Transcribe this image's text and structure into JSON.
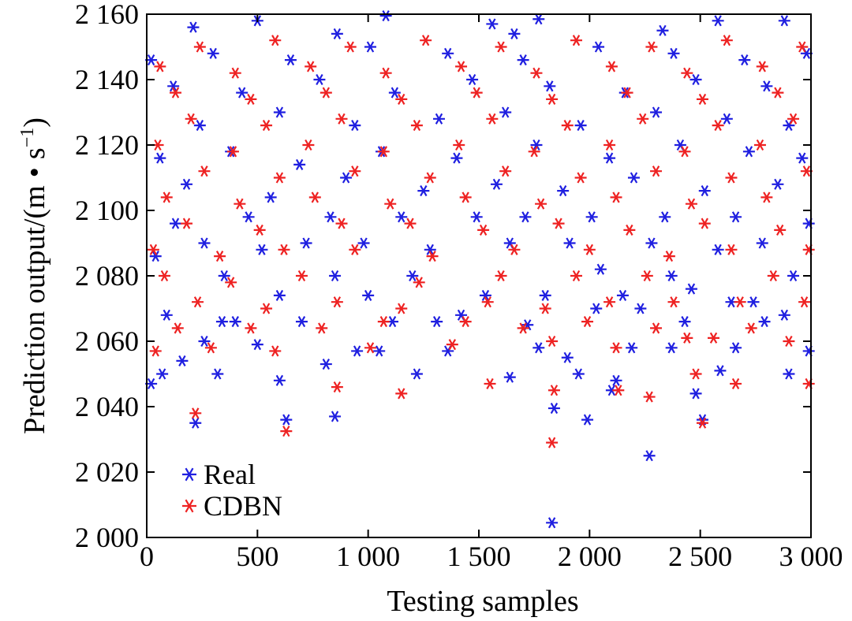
{
  "chart_data": {
    "type": "scatter",
    "title": "",
    "xlabel": "Testing samples",
    "ylabel_text": "Prediction output/(m",
    "ylabel_dot": "•",
    "ylabel_unit": "s",
    "ylabel_exp": "−1",
    "ylabel_close": ")",
    "xlim": [
      0,
      3000
    ],
    "ylim": [
      2000,
      2160
    ],
    "x_ticks": [
      {
        "value": 0,
        "label": "0"
      },
      {
        "value": 500,
        "label": "500"
      },
      {
        "value": 1000,
        "label": "1 000"
      },
      {
        "value": 1500,
        "label": "1 500"
      },
      {
        "value": 2000,
        "label": "2 000"
      },
      {
        "value": 2500,
        "label": "2 500"
      },
      {
        "value": 3000,
        "label": "3 000"
      }
    ],
    "y_ticks": [
      {
        "value": 2000,
        "label": "2 000"
      },
      {
        "value": 2020,
        "label": "2 020"
      },
      {
        "value": 2040,
        "label": "2 040"
      },
      {
        "value": 2060,
        "label": "2 060"
      },
      {
        "value": 2080,
        "label": "2 080"
      },
      {
        "value": 2100,
        "label": "2 100"
      },
      {
        "value": 2120,
        "label": "2 120"
      },
      {
        "value": 2140,
        "label": "2 140"
      },
      {
        "value": 2160,
        "label": "2 160"
      }
    ],
    "grid": false,
    "legend_position": "bottom-left",
    "series": [
      {
        "name": "Real",
        "color": "#1f1fe0",
        "marker": "asterisk",
        "points": [
          [
            1830,
            2004.5
          ],
          [
            2270,
            2025
          ],
          [
            220,
            2035
          ],
          [
            630,
            2036
          ],
          [
            850,
            2037
          ],
          [
            1990,
            2036
          ],
          [
            2510,
            2036
          ],
          [
            1840,
            2039.5
          ],
          [
            2100,
            2045
          ],
          [
            20,
            2047
          ],
          [
            2120,
            2048
          ],
          [
            600,
            2048
          ],
          [
            2480,
            2044
          ],
          [
            2900,
            2050
          ],
          [
            320,
            2050
          ],
          [
            70,
            2050
          ],
          [
            1220,
            2050
          ],
          [
            1950,
            2050
          ],
          [
            2590,
            2051
          ],
          [
            1640,
            2049
          ],
          [
            160,
            2054
          ],
          [
            810,
            2053
          ],
          [
            1900,
            2055
          ],
          [
            2190,
            2058
          ],
          [
            260,
            2060
          ],
          [
            500,
            2059
          ],
          [
            1360,
            2057
          ],
          [
            2660,
            2058
          ],
          [
            2990,
            2057
          ],
          [
            950,
            2057
          ],
          [
            1050,
            2057
          ],
          [
            2370,
            2058
          ],
          [
            1770,
            2058
          ],
          [
            400,
            2066
          ],
          [
            340,
            2066
          ],
          [
            700,
            2066
          ],
          [
            1110,
            2066
          ],
          [
            1310,
            2066
          ],
          [
            1720,
            2065
          ],
          [
            2430,
            2066
          ],
          [
            2790,
            2066
          ],
          [
            2880,
            2068
          ],
          [
            90,
            2068
          ],
          [
            1420,
            2068
          ],
          [
            2030,
            2070
          ],
          [
            2230,
            2070
          ],
          [
            2640,
            2072
          ],
          [
            2740,
            2072
          ],
          [
            600,
            2074
          ],
          [
            1000,
            2074
          ],
          [
            1530,
            2074
          ],
          [
            1800,
            2074
          ],
          [
            2150,
            2074
          ],
          [
            2460,
            2076
          ],
          [
            350,
            2080
          ],
          [
            850,
            2080
          ],
          [
            1200,
            2080
          ],
          [
            2050,
            2082
          ],
          [
            2370,
            2080
          ],
          [
            2920,
            2080
          ],
          [
            40,
            2086
          ],
          [
            260,
            2090
          ],
          [
            520,
            2088
          ],
          [
            720,
            2090
          ],
          [
            980,
            2090
          ],
          [
            1280,
            2088
          ],
          [
            1640,
            2090
          ],
          [
            1910,
            2090
          ],
          [
            2280,
            2090
          ],
          [
            2580,
            2088
          ],
          [
            2780,
            2090
          ],
          [
            130,
            2096
          ],
          [
            460,
            2098
          ],
          [
            830,
            2098
          ],
          [
            1150,
            2098
          ],
          [
            1490,
            2098
          ],
          [
            1710,
            2098
          ],
          [
            2010,
            2098
          ],
          [
            2340,
            2098
          ],
          [
            2660,
            2098
          ],
          [
            2990,
            2096
          ],
          [
            180,
            2108
          ],
          [
            560,
            2104
          ],
          [
            900,
            2110
          ],
          [
            1250,
            2106
          ],
          [
            1580,
            2108
          ],
          [
            1880,
            2106
          ],
          [
            2200,
            2110
          ],
          [
            2520,
            2106
          ],
          [
            2850,
            2108
          ],
          [
            60,
            2116
          ],
          [
            380,
            2118
          ],
          [
            690,
            2114
          ],
          [
            1060,
            2118
          ],
          [
            1400,
            2116
          ],
          [
            1760,
            2120
          ],
          [
            2090,
            2116
          ],
          [
            2410,
            2120
          ],
          [
            2720,
            2118
          ],
          [
            2960,
            2116
          ],
          [
            240,
            2126
          ],
          [
            600,
            2130
          ],
          [
            940,
            2126
          ],
          [
            1320,
            2128
          ],
          [
            1620,
            2130
          ],
          [
            1960,
            2126
          ],
          [
            2300,
            2130
          ],
          [
            2620,
            2128
          ],
          [
            2900,
            2126
          ],
          [
            120,
            2138
          ],
          [
            430,
            2136
          ],
          [
            780,
            2140
          ],
          [
            1120,
            2136
          ],
          [
            1470,
            2140
          ],
          [
            1820,
            2138
          ],
          [
            2160,
            2136
          ],
          [
            2480,
            2140
          ],
          [
            2800,
            2138
          ],
          [
            20,
            2146
          ],
          [
            300,
            2148
          ],
          [
            650,
            2146
          ],
          [
            1010,
            2150
          ],
          [
            1360,
            2148
          ],
          [
            1700,
            2146
          ],
          [
            2040,
            2150
          ],
          [
            2380,
            2148
          ],
          [
            2700,
            2146
          ],
          [
            2980,
            2148
          ],
          [
            210,
            2156
          ],
          [
            500,
            2158
          ],
          [
            860,
            2154
          ],
          [
            1080,
            2159.5
          ],
          [
            1560,
            2157
          ],
          [
            1770,
            2158.5
          ],
          [
            2580,
            2158
          ],
          [
            2880,
            2158
          ],
          [
            1660,
            2154
          ],
          [
            2330,
            2155
          ]
        ]
      },
      {
        "name": "CDBN",
        "color": "#ee2222",
        "marker": "asterisk",
        "points": [
          [
            1830,
            2029
          ],
          [
            630,
            2032.5
          ],
          [
            220,
            2038
          ],
          [
            2270,
            2043
          ],
          [
            1150,
            2044
          ],
          [
            1840,
            2045
          ],
          [
            2130,
            2045
          ],
          [
            1550,
            2047
          ],
          [
            860,
            2046
          ],
          [
            2660,
            2047
          ],
          [
            2990,
            2047
          ],
          [
            2480,
            2050
          ],
          [
            2510,
            2035
          ],
          [
            40,
            2057
          ],
          [
            290,
            2058
          ],
          [
            580,
            2057
          ],
          [
            1010,
            2058
          ],
          [
            1380,
            2059
          ],
          [
            1830,
            2060
          ],
          [
            2120,
            2058
          ],
          [
            2440,
            2061
          ],
          [
            2560,
            2061
          ],
          [
            2900,
            2060
          ],
          [
            140,
            2064
          ],
          [
            470,
            2064
          ],
          [
            790,
            2064
          ],
          [
            1070,
            2066
          ],
          [
            1440,
            2066
          ],
          [
            1700,
            2064
          ],
          [
            1990,
            2066
          ],
          [
            2300,
            2064
          ],
          [
            2730,
            2064
          ],
          [
            230,
            2072
          ],
          [
            540,
            2070
          ],
          [
            860,
            2072
          ],
          [
            1150,
            2070
          ],
          [
            1540,
            2072
          ],
          [
            1800,
            2070
          ],
          [
            2090,
            2072
          ],
          [
            2380,
            2072
          ],
          [
            2680,
            2072
          ],
          [
            2970,
            2072
          ],
          [
            80,
            2080
          ],
          [
            380,
            2078
          ],
          [
            700,
            2080
          ],
          [
            1230,
            2078
          ],
          [
            1600,
            2080
          ],
          [
            1940,
            2080
          ],
          [
            2260,
            2080
          ],
          [
            2830,
            2080
          ],
          [
            30,
            2088
          ],
          [
            330,
            2086
          ],
          [
            620,
            2088
          ],
          [
            940,
            2088
          ],
          [
            1290,
            2086
          ],
          [
            1660,
            2088
          ],
          [
            2000,
            2088
          ],
          [
            2360,
            2086
          ],
          [
            2640,
            2088
          ],
          [
            2990,
            2088
          ],
          [
            180,
            2096
          ],
          [
            510,
            2094
          ],
          [
            880,
            2096
          ],
          [
            1190,
            2096
          ],
          [
            1520,
            2094
          ],
          [
            1860,
            2096
          ],
          [
            2180,
            2094
          ],
          [
            2520,
            2096
          ],
          [
            2860,
            2094
          ],
          [
            90,
            2104
          ],
          [
            420,
            2102
          ],
          [
            760,
            2104
          ],
          [
            1100,
            2102
          ],
          [
            1440,
            2104
          ],
          [
            1780,
            2102
          ],
          [
            2120,
            2104
          ],
          [
            2460,
            2102
          ],
          [
            2800,
            2104
          ],
          [
            260,
            2112
          ],
          [
            600,
            2110
          ],
          [
            940,
            2112
          ],
          [
            1280,
            2110
          ],
          [
            1620,
            2112
          ],
          [
            1960,
            2110
          ],
          [
            2300,
            2112
          ],
          [
            2640,
            2110
          ],
          [
            2980,
            2112
          ],
          [
            50,
            2120
          ],
          [
            390,
            2118
          ],
          [
            730,
            2120
          ],
          [
            1070,
            2118
          ],
          [
            1410,
            2120
          ],
          [
            1750,
            2118
          ],
          [
            2090,
            2120
          ],
          [
            2430,
            2118
          ],
          [
            2770,
            2120
          ],
          [
            200,
            2128
          ],
          [
            540,
            2126
          ],
          [
            880,
            2128
          ],
          [
            1220,
            2126
          ],
          [
            1560,
            2128
          ],
          [
            1900,
            2126
          ],
          [
            2240,
            2128
          ],
          [
            2580,
            2126
          ],
          [
            2920,
            2128
          ],
          [
            130,
            2136
          ],
          [
            470,
            2134
          ],
          [
            810,
            2136
          ],
          [
            1150,
            2134
          ],
          [
            1490,
            2136
          ],
          [
            1830,
            2134
          ],
          [
            2170,
            2136
          ],
          [
            2510,
            2134
          ],
          [
            2850,
            2136
          ],
          [
            60,
            2144
          ],
          [
            400,
            2142
          ],
          [
            740,
            2144
          ],
          [
            1080,
            2142
          ],
          [
            1420,
            2144
          ],
          [
            1760,
            2142
          ],
          [
            2100,
            2144
          ],
          [
            2440,
            2142
          ],
          [
            2780,
            2144
          ],
          [
            240,
            2150
          ],
          [
            580,
            2152
          ],
          [
            920,
            2150
          ],
          [
            1260,
            2152
          ],
          [
            1600,
            2150
          ],
          [
            1940,
            2152
          ],
          [
            2280,
            2150
          ],
          [
            2620,
            2152
          ],
          [
            2960,
            2150
          ]
        ]
      }
    ]
  }
}
